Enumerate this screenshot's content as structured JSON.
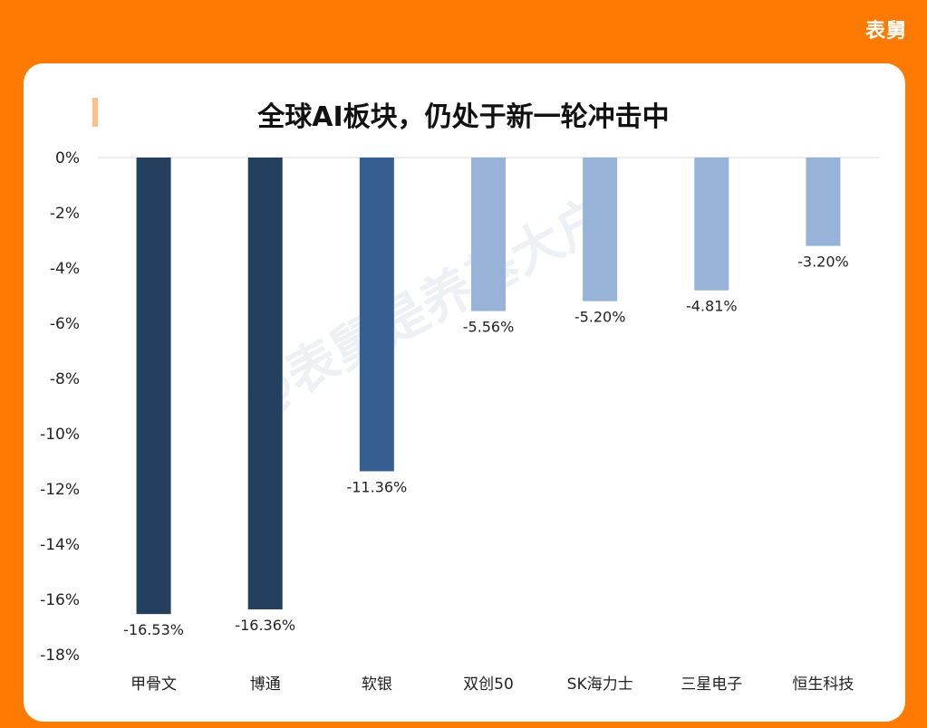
{
  "brand": "表舅",
  "watermark": "@表舅是养基大户",
  "chart_data": {
    "type": "bar",
    "title": "全球AI板块，仍处于新一轮冲击中",
    "categories": [
      "甲骨文",
      "博通",
      "软银",
      "双创50",
      "SK海力士",
      "三星电子",
      "恒生科技"
    ],
    "values": [
      -16.53,
      -16.36,
      -11.36,
      -5.56,
      -5.2,
      -4.81,
      -3.2
    ],
    "data_labels": [
      "-16.53%",
      "-16.36%",
      "-11.36%",
      "-5.56%",
      "-5.20%",
      "-4.81%",
      "-3.20%"
    ],
    "bar_colors": [
      "#253F5F",
      "#253F5F",
      "#355F91",
      "#97B4D8",
      "#97B4D8",
      "#97B4D8",
      "#97B4D8"
    ],
    "ylim": [
      -18,
      0
    ],
    "y_ticks": [
      0,
      -2,
      -4,
      -6,
      -8,
      -10,
      -12,
      -14,
      -16,
      -18
    ],
    "y_tick_labels": [
      "0%",
      "-2%",
      "-4%",
      "-6%",
      "-8%",
      "-10%",
      "-12%",
      "-14%",
      "-16%",
      "-18%"
    ],
    "grid": false,
    "legend": "none"
  }
}
